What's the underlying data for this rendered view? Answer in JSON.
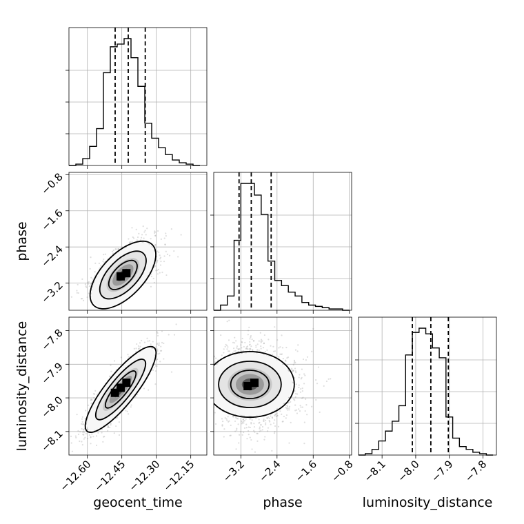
{
  "chart_data": {
    "type": "corner",
    "parameters": [
      {
        "name": "geocent_time",
        "label": "geocent_time",
        "range": [
          -12.68,
          -12.08
        ],
        "ticks": [
          -12.6,
          -12.45,
          -12.3,
          -12.15
        ],
        "tick_labels": [
          "−12.60",
          "−12.45",
          "−12.30",
          "−12.15"
        ],
        "quantiles": [
          -12.479,
          -12.422,
          -12.348
        ],
        "hist_bin_edges": [
          -12.68,
          -12.65,
          -12.62,
          -12.59,
          -12.56,
          -12.53,
          -12.5,
          -12.47,
          -12.44,
          -12.41,
          -12.38,
          -12.35,
          -12.32,
          -12.29,
          -12.26,
          -12.23,
          -12.2,
          -12.17,
          -12.14,
          -12.11
        ],
        "hist_counts": [
          0.0,
          0.01,
          0.05,
          0.14,
          0.27,
          0.68,
          0.87,
          0.89,
          0.93,
          0.79,
          0.58,
          0.31,
          0.2,
          0.13,
          0.08,
          0.04,
          0.02,
          0.01,
          0.0
        ]
      },
      {
        "name": "phase",
        "label": "phase",
        "range": [
          -3.8,
          -0.75
        ],
        "ticks": [
          -3.2,
          -2.4,
          -1.6,
          -0.8
        ],
        "tick_labels": [
          "−3.2",
          "−2.4",
          "−1.6",
          "−0.8"
        ],
        "quantiles": [
          -3.24,
          -2.97,
          -2.53
        ],
        "hist_bin_edges": [
          -3.8,
          -3.65,
          -3.5,
          -3.35,
          -3.2,
          -3.05,
          -2.9,
          -2.75,
          -2.6,
          -2.45,
          -2.3,
          -2.15,
          -2.0,
          -1.85,
          -1.7,
          -1.55,
          -1.4,
          -1.25,
          -1.1,
          -0.95,
          -0.8
        ],
        "hist_counts": [
          0.0,
          0.04,
          0.11,
          0.54,
          0.98,
          0.98,
          0.89,
          0.74,
          0.38,
          0.23,
          0.19,
          0.14,
          0.11,
          0.06,
          0.04,
          0.03,
          0.02,
          0.01,
          0.01,
          0.0
        ]
      },
      {
        "name": "luminosity_distance",
        "label": "luminosity_distance",
        "range": [
          -8.17,
          -7.76
        ],
        "ticks": [
          -8.1,
          -8.0,
          -7.9,
          -7.8
        ],
        "tick_labels": [
          "−8.1",
          "−8.0",
          "−7.9",
          "−7.8"
        ],
        "quantiles": [
          -8.01,
          -7.955,
          -7.903
        ],
        "hist_bin_edges": [
          -8.17,
          -8.15,
          -8.13,
          -8.11,
          -8.09,
          -8.07,
          -8.05,
          -8.03,
          -8.01,
          -7.99,
          -7.97,
          -7.95,
          -7.93,
          -7.91,
          -7.89,
          -7.87,
          -7.85,
          -7.83,
          -7.81,
          -7.79,
          -7.77
        ],
        "hist_counts": [
          0.0,
          0.01,
          0.04,
          0.1,
          0.17,
          0.24,
          0.35,
          0.71,
          0.87,
          0.9,
          0.86,
          0.76,
          0.69,
          0.27,
          0.12,
          0.06,
          0.04,
          0.02,
          0.01,
          0.0
        ]
      }
    ],
    "pairs": [
      {
        "x": "geocent_time",
        "y": "phase",
        "center": [
          -12.445,
          -3.02
        ],
        "sigma": [
          0.065,
          0.34
        ],
        "correlation": 0.6,
        "peak_cells": [
          [
            -12.455,
            -3.05
          ],
          [
            -12.43,
            -2.98
          ]
        ]
      },
      {
        "x": "geocent_time",
        "y": "luminosity_distance",
        "center": [
          -12.455,
          -7.975
        ],
        "sigma": [
          0.07,
          0.058
        ],
        "correlation": 0.85,
        "peak_cells": [
          [
            -12.48,
            -7.985
          ],
          [
            -12.455,
            -7.97
          ],
          [
            -12.43,
            -7.955
          ]
        ]
      },
      {
        "x": "phase",
        "y": "luminosity_distance",
        "center": [
          -3.0,
          -7.96
        ],
        "sigma": [
          0.33,
          0.06
        ],
        "correlation": 0.0,
        "peak_cells": [
          [
            -3.05,
            -7.965
          ],
          [
            -2.9,
            -7.955
          ]
        ]
      }
    ],
    "grid": true
  }
}
